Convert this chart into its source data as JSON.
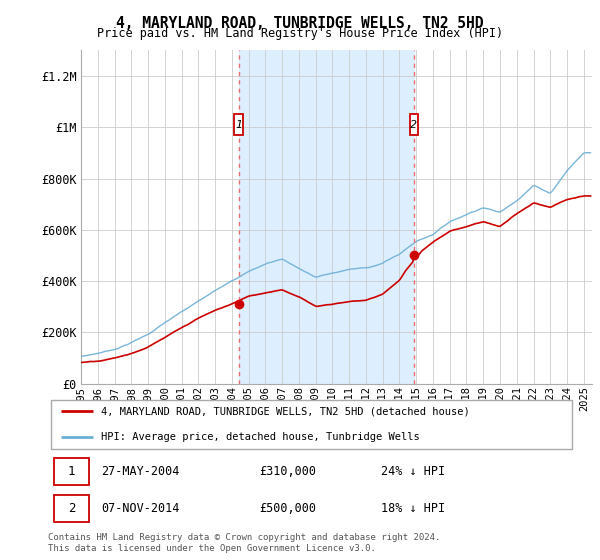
{
  "title": "4, MARYLAND ROAD, TUNBRIDGE WELLS, TN2 5HD",
  "subtitle": "Price paid vs. HM Land Registry's House Price Index (HPI)",
  "ylabel_ticks": [
    "£0",
    "£200K",
    "£400K",
    "£600K",
    "£800K",
    "£1M",
    "£1.2M"
  ],
  "ytick_vals": [
    0,
    200000,
    400000,
    600000,
    800000,
    1000000,
    1200000
  ],
  "ylim": [
    0,
    1300000
  ],
  "xlim_start": 1995.0,
  "xlim_end": 2025.5,
  "sale1_year": 2004.4,
  "sale1_price": 310000,
  "sale1_label": "1",
  "sale1_date": "27-MAY-2004",
  "sale1_pct": "24% ↓ HPI",
  "sale2_year": 2014.85,
  "sale2_price": 500000,
  "sale2_label": "2",
  "sale2_date": "07-NOV-2014",
  "sale2_pct": "18% ↓ HPI",
  "hpi_color": "#6baed6",
  "price_color": "#cc0000",
  "vline_color": "#e87070",
  "shading_color": "#ddeeff",
  "legend_label_price": "4, MARYLAND ROAD, TUNBRIDGE WELLS, TN2 5HD (detached house)",
  "legend_label_hpi": "HPI: Average price, detached house, Tunbridge Wells",
  "footnote": "Contains HM Land Registry data © Crown copyright and database right 2024.\nThis data is licensed under the Open Government Licence v3.0.",
  "xtick_years": [
    1995,
    1996,
    1997,
    1998,
    1999,
    2000,
    2001,
    2002,
    2003,
    2004,
    2005,
    2006,
    2007,
    2008,
    2009,
    2010,
    2011,
    2012,
    2013,
    2014,
    2015,
    2016,
    2017,
    2018,
    2019,
    2020,
    2021,
    2022,
    2023,
    2024,
    2025
  ],
  "hpi_knots_x": [
    1995,
    1996,
    1997,
    1998,
    1999,
    2000,
    2001,
    2002,
    2003,
    2004,
    2005,
    2006,
    2007,
    2008,
    2009,
    2010,
    2011,
    2012,
    2013,
    2014,
    2015,
    2016,
    2017,
    2018,
    2019,
    2020,
    2021,
    2022,
    2023,
    2024,
    2025
  ],
  "hpi_knots_y": [
    105000,
    118000,
    135000,
    162000,
    195000,
    240000,
    280000,
    320000,
    360000,
    405000,
    440000,
    470000,
    490000,
    455000,
    420000,
    435000,
    450000,
    455000,
    475000,
    510000,
    560000,
    590000,
    640000,
    670000,
    700000,
    680000,
    730000,
    790000,
    760000,
    850000,
    920000
  ],
  "price_knots_x": [
    1995,
    1996,
    1997,
    1998,
    1999,
    2000,
    2001,
    2002,
    2003,
    2004,
    2005,
    2006,
    2007,
    2008,
    2009,
    2010,
    2011,
    2012,
    2013,
    2014,
    2015,
    2016,
    2017,
    2018,
    2019,
    2020,
    2021,
    2022,
    2023,
    2024,
    2025
  ],
  "price_knots_y": [
    82000,
    90000,
    103000,
    122000,
    148000,
    183000,
    218000,
    255000,
    285000,
    310000,
    340000,
    355000,
    370000,
    340000,
    305000,
    315000,
    325000,
    330000,
    355000,
    410000,
    510000,
    560000,
    600000,
    620000,
    640000,
    620000,
    670000,
    710000,
    690000,
    720000,
    730000
  ]
}
